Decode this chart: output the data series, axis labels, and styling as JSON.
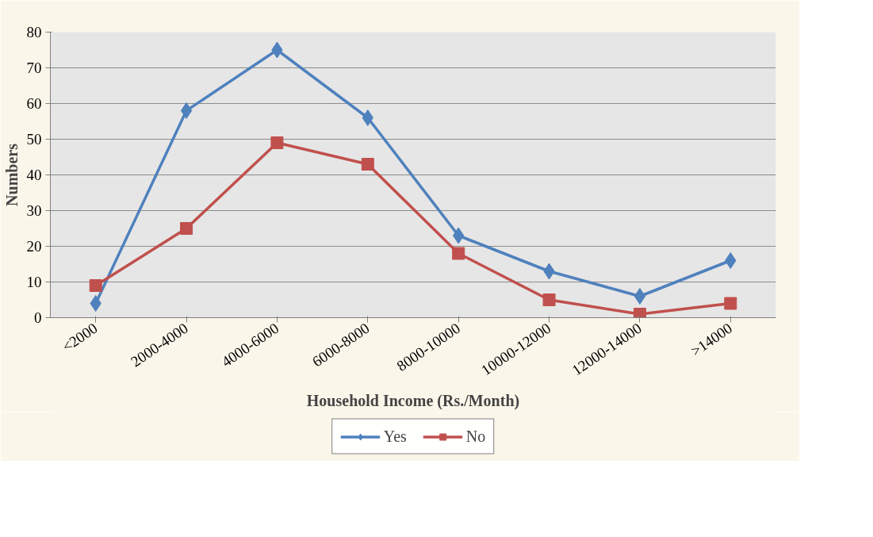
{
  "chart_data": {
    "type": "line",
    "xlabel": "Household Income (Rs./Month)",
    "ylabel": "Numbers",
    "categories": [
      "<2000",
      "2000-4000",
      "4000-6000",
      "6000-8000",
      "8000-10000",
      "10000-12000",
      "12000-14000",
      ">14000"
    ],
    "series": [
      {
        "name": "Yes",
        "color": "#4f81bd",
        "marker": "diamond",
        "values": [
          4,
          58,
          75,
          56,
          23,
          13,
          6,
          16
        ]
      },
      {
        "name": "No",
        "color": "#c0504d",
        "marker": "square",
        "values": [
          9,
          25,
          49,
          43,
          18,
          5,
          1,
          4
        ]
      }
    ],
    "ylim": [
      0,
      80
    ],
    "yticks": [
      0,
      10,
      20,
      30,
      40,
      50,
      60,
      70,
      80
    ],
    "grid": "y",
    "legend": "bottom",
    "line_style": "solid"
  }
}
